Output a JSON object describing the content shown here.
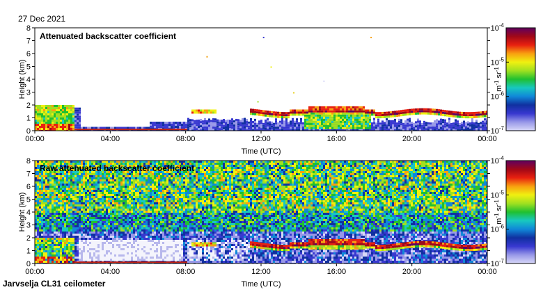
{
  "header": {
    "date": "27 Dec 2021"
  },
  "footer": {
    "site": "Jarvselja CL31 ceilometer"
  },
  "chart_data": [
    {
      "type": "heatmap",
      "title": "Attenuated backscatter coefficient",
      "xlabel": "Time (UTC)",
      "ylabel": "Height (km)",
      "x_ticks": [
        "00:00",
        "04:00",
        "08:00",
        "12:00",
        "16:00",
        "20:00",
        "00:00"
      ],
      "x_range_hours": [
        0,
        24
      ],
      "y_ticks": [
        "0",
        "1",
        "2",
        "3",
        "4",
        "5",
        "6",
        "7",
        "8"
      ],
      "ylim": [
        0,
        8
      ],
      "colorbar": {
        "unit_base": "m",
        "unit_exp1": "-1",
        "unit_mid": " sr",
        "unit_exp2": "-1",
        "ticks": [
          {
            "base": "10",
            "exp": "-4"
          },
          {
            "base": "10",
            "exp": "-5"
          },
          {
            "base": "10",
            "exp": "-6"
          },
          {
            "base": "10",
            "exp": "-7"
          }
        ]
      },
      "features": [
        {
          "name": "cloud layer",
          "t_start_h": 11.4,
          "t_end_h": 24.0,
          "height_km": 1.4
        },
        {
          "name": "early boundary layer",
          "t_start_h": 0.0,
          "t_end_h": 2.0,
          "height_km": 2.0
        }
      ]
    },
    {
      "type": "heatmap",
      "title": "Raw attenuated backscatter coefficient",
      "xlabel": "Time (UTC)",
      "ylabel": "Height (km)",
      "x_ticks": [
        "00:00",
        "04:00",
        "08:00",
        "12:00",
        "16:00",
        "20:00",
        "00:00"
      ],
      "x_range_hours": [
        0,
        24
      ],
      "y_ticks": [
        "0",
        "1",
        "2",
        "3",
        "4",
        "5",
        "6",
        "7",
        "8"
      ],
      "ylim": [
        0,
        8
      ],
      "colorbar": {
        "unit_base": "m",
        "unit_exp1": "-1",
        "unit_mid": " sr",
        "unit_exp2": "-1",
        "ticks": [
          {
            "base": "10",
            "exp": "-4"
          },
          {
            "base": "10",
            "exp": "-5"
          },
          {
            "base": "10",
            "exp": "-6"
          },
          {
            "base": "10",
            "exp": "-7"
          }
        ]
      },
      "features": [
        {
          "name": "cloud layer",
          "t_start_h": 11.4,
          "t_end_h": 24.0,
          "height_km": 1.4
        },
        {
          "name": "noise field",
          "t_start_h": 0.0,
          "t_end_h": 24.0,
          "height_km": 8.0
        }
      ]
    }
  ],
  "colorscale": [
    "#d8d8f8",
    "#9898e8",
    "#3838d0",
    "#1030a0",
    "#1088d8",
    "#18c8c0",
    "#20c030",
    "#a0e020",
    "#f0f010",
    "#f8a010",
    "#e82010",
    "#a00818",
    "#600060"
  ]
}
